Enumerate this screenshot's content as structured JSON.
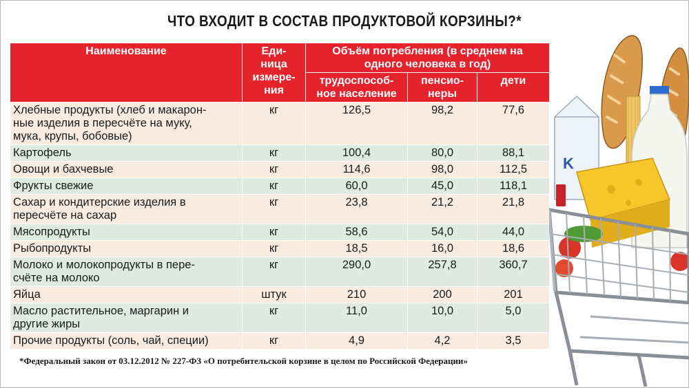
{
  "title": "ЧТО ВХОДИТ В СОСТАВ ПРОДУКТОВОЙ КОРЗИНЫ?*",
  "header": {
    "name": "Наименование",
    "unit": "Еди-\nница\nизмере-\nния",
    "consumption": "Объём потребления (в среднем на одного человека в год)",
    "working": "трудоспособ-\nное население",
    "pensioners": "пенсио-\nнеры",
    "children": "дети"
  },
  "rows": [
    {
      "name": "Хлебные продукты (хлеб и макарон-\nные изделия в пересчёте на муку,\nмука, крупы, бобовые)",
      "unit": "кг",
      "working": "126,5",
      "pensioners": "98,2",
      "children": "77,6"
    },
    {
      "name": "Картофель",
      "unit": "кг",
      "working": "100,4",
      "pensioners": "80,0",
      "children": "88,1"
    },
    {
      "name": "Овощи и бахчевые",
      "unit": "кг",
      "working": "114,6",
      "pensioners": "98,0",
      "children": "112,5"
    },
    {
      "name": "Фрукты свежие",
      "unit": "кг",
      "working": "60,0",
      "pensioners": "45,0",
      "children": "118,1"
    },
    {
      "name": "Сахар и кондитерские изделия в\nпересчёте на сахар",
      "unit": "кг",
      "working": "23,8",
      "pensioners": "21,2",
      "children": "21,8"
    },
    {
      "name": "Мясопродукты",
      "unit": "кг",
      "working": "58,6",
      "pensioners": "54,0",
      "children": "44,0"
    },
    {
      "name": "Рыбопродукты",
      "unit": "кг",
      "working": "18,5",
      "pensioners": "16,0",
      "children": "18,6"
    },
    {
      "name": "Молоко и молокопродукты в пере-\nсчёте на молоко",
      "unit": "кг",
      "working": "290,0",
      "pensioners": "257,8",
      "children": "360,7"
    },
    {
      "name": "Яйца",
      "unit": "штук",
      "working": "210",
      "pensioners": "200",
      "children": "201"
    },
    {
      "name": "Масло растительное, маргарин и\nдругие жиры",
      "unit": "кг",
      "working": "11,0",
      "pensioners": "10,0",
      "children": "5,0"
    },
    {
      "name": "Прочие продукты (соль, чай, специи)",
      "unit": "кг",
      "working": "4,9",
      "pensioners": "4,2",
      "children": "3,5"
    }
  ],
  "footnote": "*Федеральный закон от 03.12.2012 № 227-ФЗ «О потребительской корзине в целом по Российской Федерации»",
  "colors": {
    "header_red": "#e5232c",
    "row_band_peach": "#f9ebe0",
    "row_band_green": "#dfeae3"
  },
  "illustration": {
    "subject": "shopping-cart-with-groceries",
    "carton_text": "K"
  }
}
